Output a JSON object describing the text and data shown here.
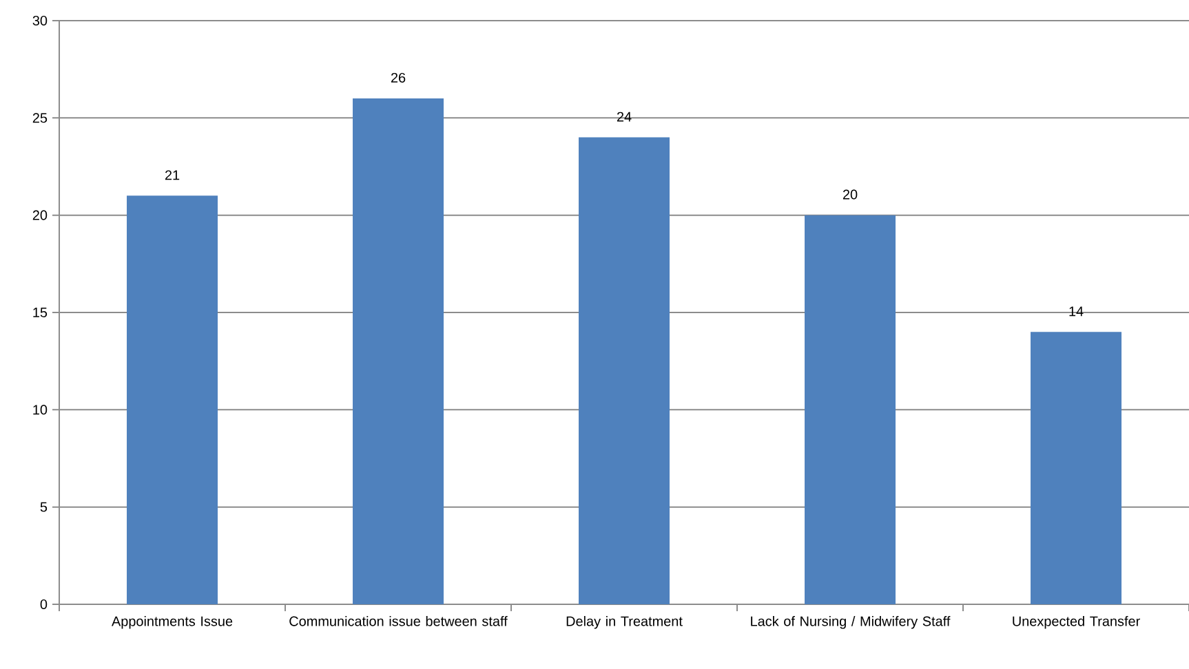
{
  "chart_data": {
    "type": "bar",
    "categories": [
      "Appointments Issue",
      "Communication issue between staff",
      "Delay in Treatment",
      "Lack of Nursing / Midwifery Staff",
      "Unexpected Transfer"
    ],
    "values": [
      21,
      26,
      24,
      20,
      14
    ],
    "color": "#4f81bd",
    "ylim": [
      0,
      30
    ],
    "yticks": [
      0,
      5,
      10,
      15,
      20,
      25,
      30
    ],
    "grid": "y",
    "data_labels": true
  }
}
